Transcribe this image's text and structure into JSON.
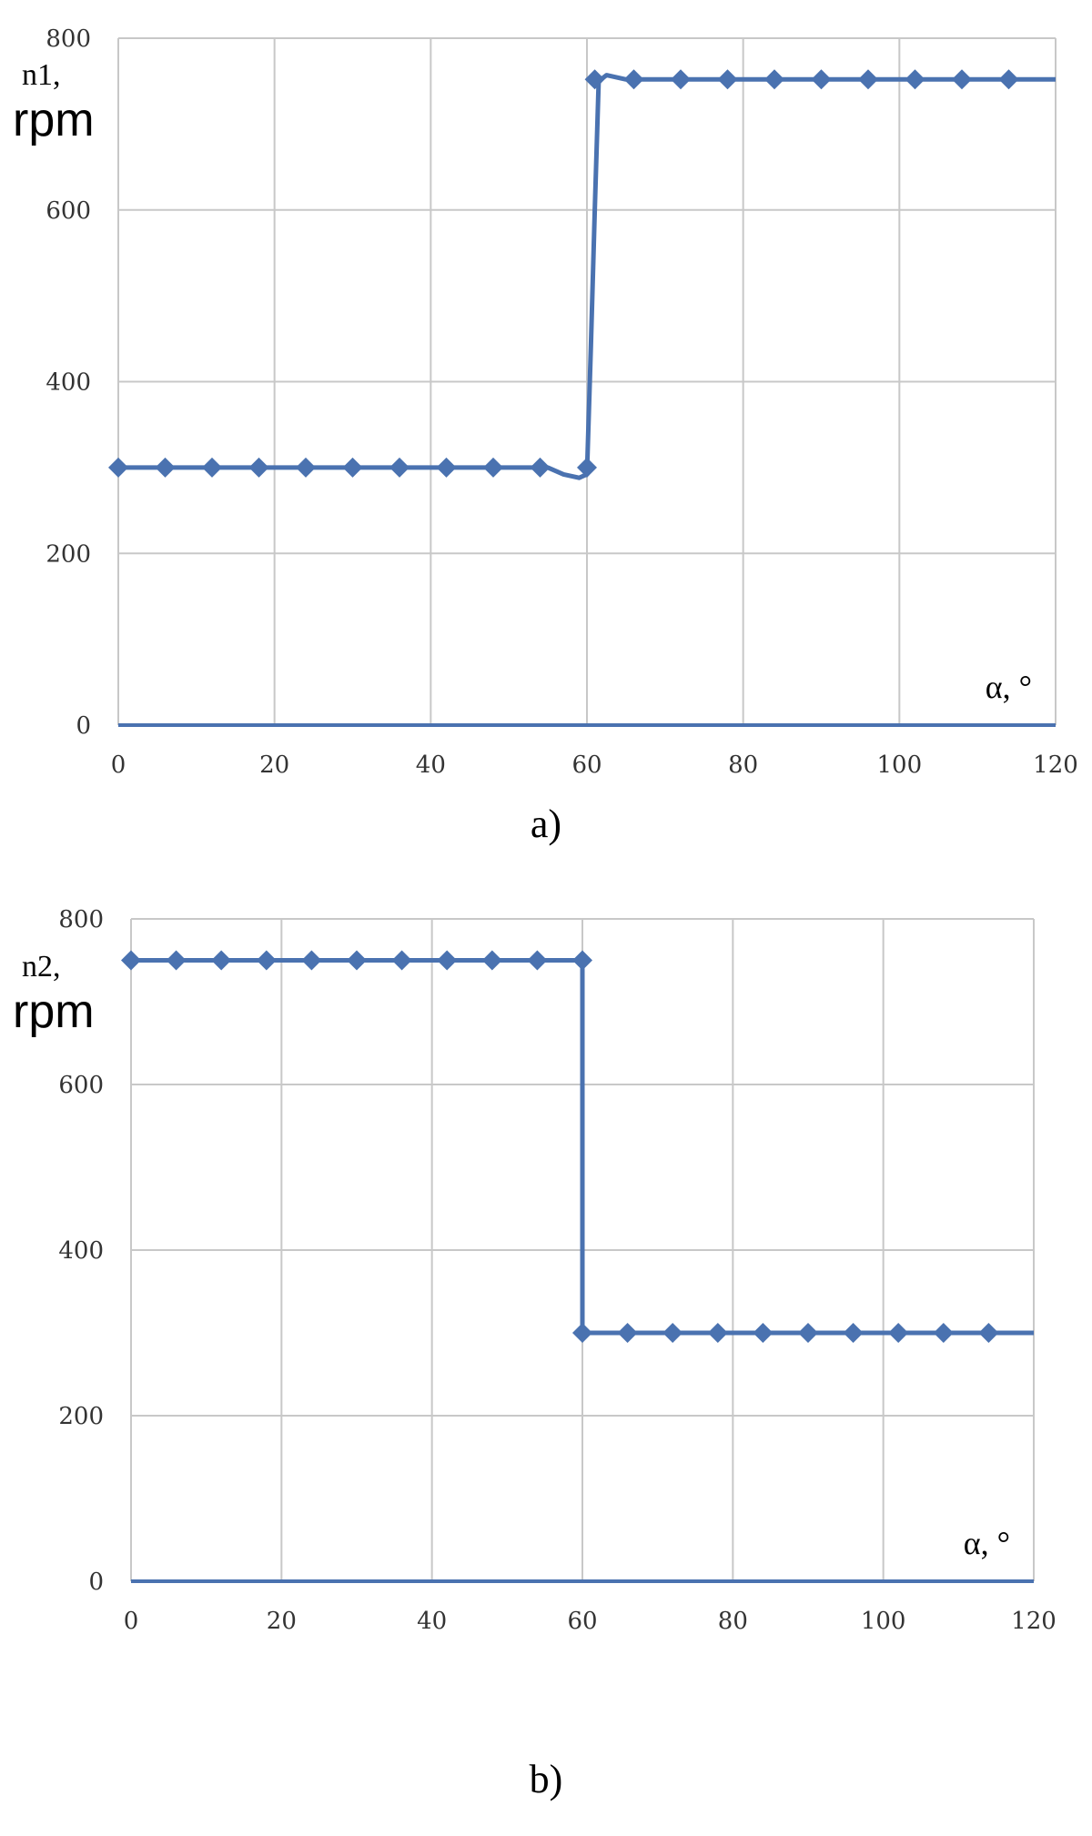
{
  "chart_data": [
    {
      "type": "line",
      "panel_label": "a)",
      "ylabel_symbol": "n1,",
      "ylabel_unit": "rpm",
      "xlabel": "α, °",
      "xlim": [
        0,
        120
      ],
      "ylim": [
        0,
        800
      ],
      "xticks": [
        0,
        20,
        40,
        60,
        80,
        100,
        120
      ],
      "yticks": [
        0,
        200,
        400,
        600,
        800
      ],
      "grid": true,
      "color": "#4a72b0",
      "series": [
        {
          "line": [
            [
              0,
              300
            ],
            [
              55,
              300
            ],
            [
              57,
              292
            ],
            [
              59,
              288
            ],
            [
              60,
              292
            ],
            [
              60.5,
              440
            ],
            [
              61,
              600
            ],
            [
              61.5,
              750
            ],
            [
              62.5,
              757
            ],
            [
              65,
              752
            ],
            [
              120,
              752
            ]
          ],
          "markers": [
            [
              0,
              300
            ],
            [
              6,
              300
            ],
            [
              12,
              300
            ],
            [
              18,
              300
            ],
            [
              24,
              300
            ],
            [
              30,
              300
            ],
            [
              36,
              300
            ],
            [
              42,
              300
            ],
            [
              48,
              300
            ],
            [
              54,
              300
            ],
            [
              60,
              300
            ],
            [
              61,
              752
            ],
            [
              66,
              752
            ],
            [
              72,
              752
            ],
            [
              78,
              752
            ],
            [
              84,
              752
            ],
            [
              90,
              752
            ],
            [
              96,
              752
            ],
            [
              102,
              752
            ],
            [
              108,
              752
            ],
            [
              114,
              752
            ]
          ]
        }
      ]
    },
    {
      "type": "line",
      "panel_label": "b)",
      "ylabel_symbol": "n2,",
      "ylabel_unit": "rpm",
      "xlabel": "α, °",
      "xlim": [
        0,
        120
      ],
      "ylim": [
        0,
        800
      ],
      "xticks": [
        0,
        20,
        40,
        60,
        80,
        100,
        120
      ],
      "yticks": [
        0,
        200,
        400,
        600,
        800
      ],
      "grid": true,
      "color": "#4a72b0",
      "series": [
        {
          "line": [
            [
              0,
              750
            ],
            [
              60,
              750
            ],
            [
              60,
              300
            ],
            [
              120,
              300
            ]
          ],
          "markers": [
            [
              0,
              750
            ],
            [
              6,
              750
            ],
            [
              12,
              750
            ],
            [
              18,
              750
            ],
            [
              24,
              750
            ],
            [
              30,
              750
            ],
            [
              36,
              750
            ],
            [
              42,
              750
            ],
            [
              48,
              750
            ],
            [
              54,
              750
            ],
            [
              60,
              750
            ],
            [
              60,
              300
            ],
            [
              66,
              300
            ],
            [
              72,
              300
            ],
            [
              78,
              300
            ],
            [
              84,
              300
            ],
            [
              90,
              300
            ],
            [
              96,
              300
            ],
            [
              102,
              300
            ],
            [
              108,
              300
            ],
            [
              114,
              300
            ]
          ]
        }
      ]
    }
  ]
}
